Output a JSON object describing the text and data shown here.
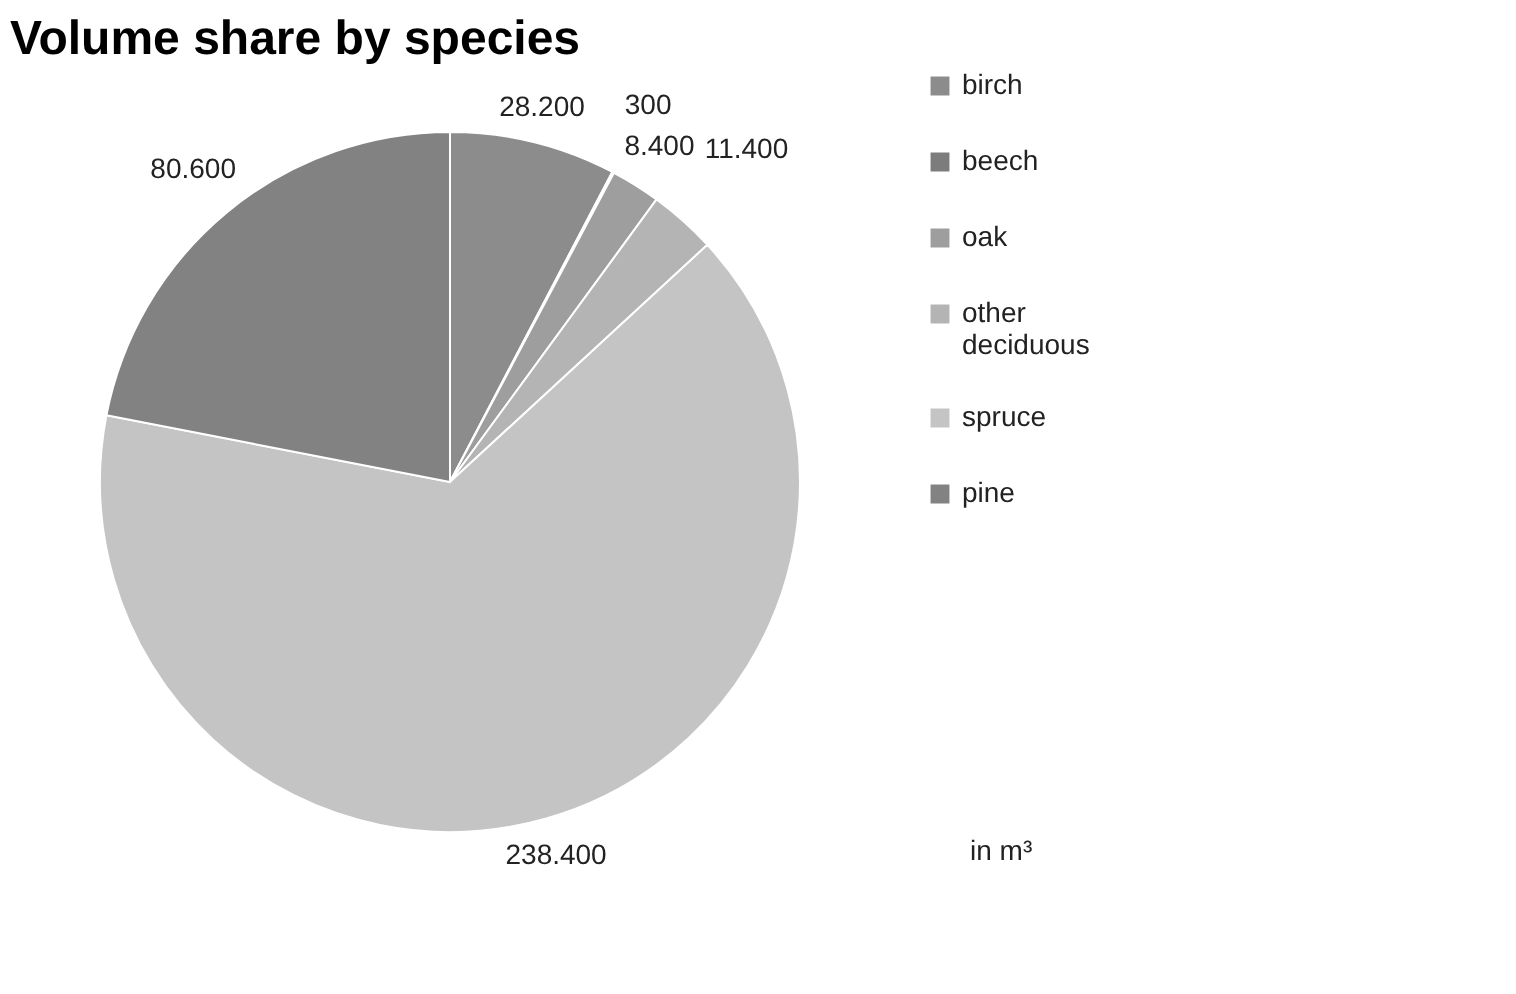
{
  "chart_data": {
    "type": "pie",
    "title": "Volume share by species",
    "categories": [
      "birch",
      "beech",
      "oak",
      "other deciduous",
      "spruce",
      "pine"
    ],
    "values": [
      28200,
      300,
      8400,
      11400,
      238400,
      80600
    ],
    "value_labels": [
      "28.200",
      "300",
      "8.400",
      "11.400",
      "238.400",
      "80.600"
    ],
    "colors": [
      "#8c8c8c",
      "#7c7c7c",
      "#9e9e9e",
      "#b4b4b4",
      "#c4c4c4",
      "#828282"
    ],
    "legend": "right",
    "annotations": [
      "in m³"
    ]
  }
}
